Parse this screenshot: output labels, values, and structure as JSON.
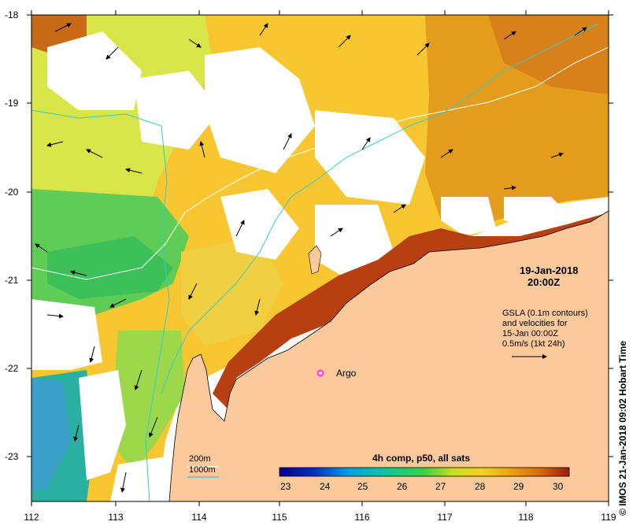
{
  "date_label": "19-Jan-2018",
  "time_label": "20:00Z",
  "argo_label": "Argo",
  "notes": {
    "line1": "GSLA (0.1m contours)",
    "line2": "and velocities for",
    "line3": "15-Jan 00:00Z",
    "line4": "0.5m/s (1kt 24h)"
  },
  "legend": {
    "line_200": "200m",
    "line_1000": "1000m"
  },
  "colorbar": {
    "title": "4h comp, p50, all sats",
    "min": 23,
    "max": 30,
    "ticks": [
      "23",
      "24",
      "25",
      "26",
      "27",
      "28",
      "29",
      "30"
    ]
  },
  "credit": "©  IMOS 21-Jan-2018 09:02 Hobart Time",
  "axes": {
    "lon_ticks": [
      "112",
      "113",
      "114",
      "115",
      "116",
      "117",
      "118",
      "119"
    ],
    "lat_ticks": [
      "-18",
      "-19",
      "-20",
      "-21",
      "-22",
      "-23"
    ],
    "lon_range": [
      112,
      119
    ],
    "lat_range": [
      -23.5,
      -18
    ]
  },
  "colors": {
    "land": "#fbc99a",
    "coast_dark": "#a83008",
    "isobath_200": "#ffffff",
    "isobath_1000": "#33cccc",
    "argo_marker": "#ff33ff"
  },
  "argo": {
    "lon": 115.55,
    "lat": -22.05
  }
}
